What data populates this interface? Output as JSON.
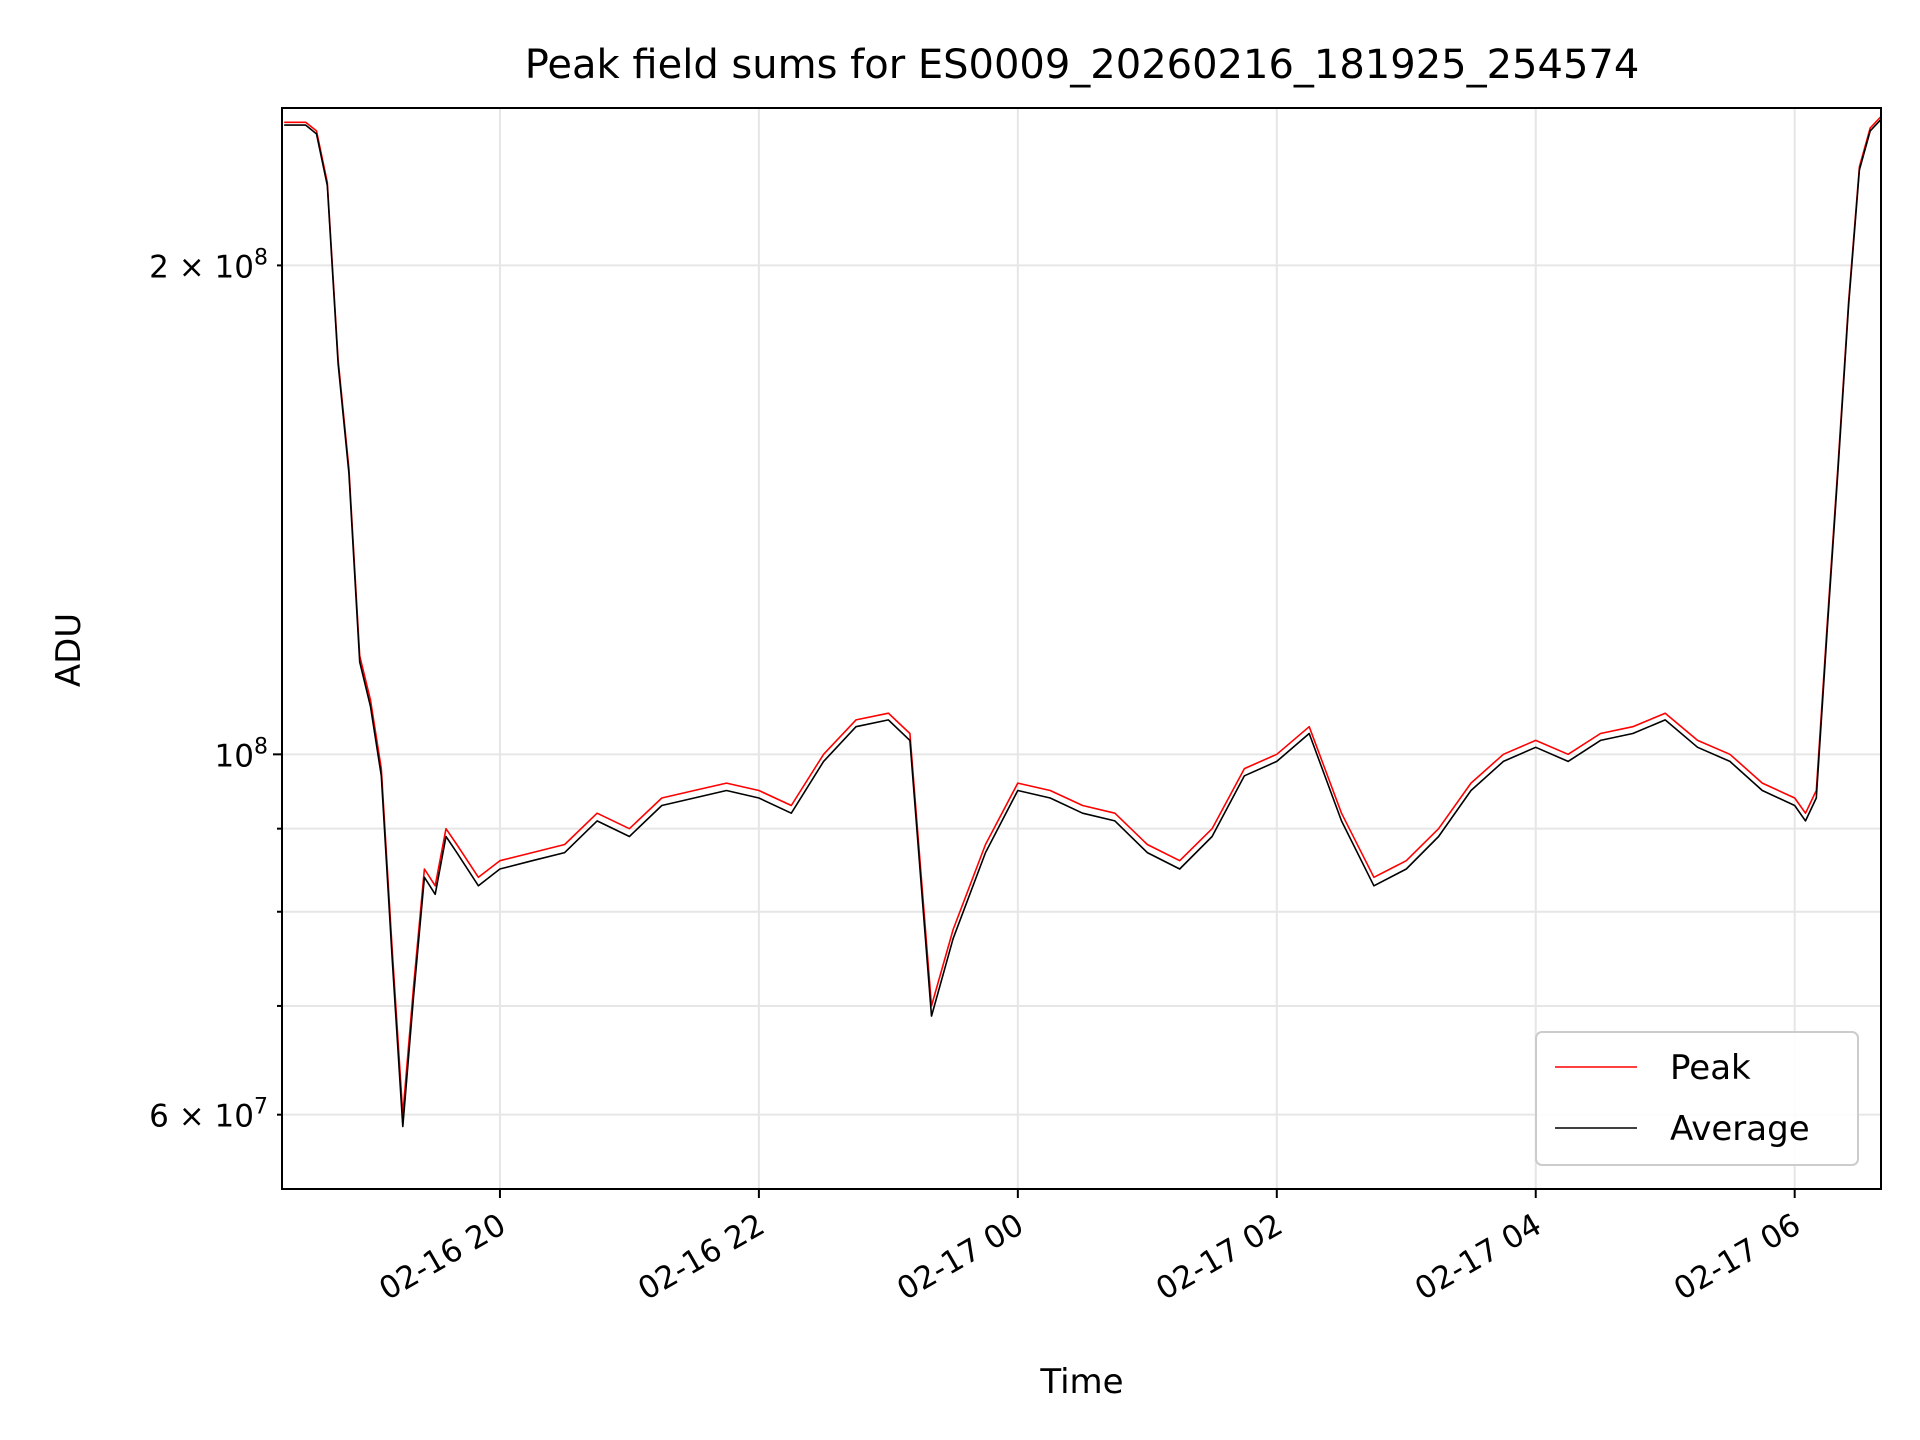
{
  "chart_data": {
    "type": "line",
    "title": "Peak field sums for ES0009_20260216_181925_254574",
    "xlabel": "Time",
    "ylabel": "ADU",
    "y_scale": "log",
    "grid": true,
    "legend_position": "lower right",
    "x_axis": {
      "type": "datetime",
      "range": [
        "2026-02-16 18:19",
        "2026-02-17 06:40"
      ],
      "ticks": [
        "2026-02-16 20:00",
        "2026-02-16 22:00",
        "2026-02-17 00:00",
        "2026-02-17 02:00",
        "2026-02-17 04:00",
        "2026-02-17 06:00"
      ],
      "tick_labels": [
        "02-16 20",
        "02-16 22",
        "02-17 00",
        "02-17 02",
        "02-17 04",
        "02-17 06"
      ]
    },
    "y_axis": {
      "range": [
        54000000,
        250000000
      ],
      "major_ticks": [
        100000000
      ],
      "major_tick_labels": [
        "10^8"
      ],
      "minor_ticks": [
        60000000,
        70000000,
        80000000,
        90000000,
        200000000
      ],
      "labeled_minor_ticks": [
        {
          "value": 60000000,
          "label": "6 × 10^7"
        },
        {
          "value": 200000000,
          "label": "2 × 10^8"
        }
      ]
    },
    "series": [
      {
        "name": "Peak",
        "color": "#ff0000",
        "x": [
          "2026-02-16 18:20",
          "2026-02-16 18:30",
          "2026-02-16 18:35",
          "2026-02-16 18:40",
          "2026-02-16 18:45",
          "2026-02-16 18:50",
          "2026-02-16 18:55",
          "2026-02-16 19:00",
          "2026-02-16 19:05",
          "2026-02-16 19:10",
          "2026-02-16 19:15",
          "2026-02-16 19:20",
          "2026-02-16 19:25",
          "2026-02-16 19:30",
          "2026-02-16 19:35",
          "2026-02-16 19:40",
          "2026-02-16 19:50",
          "2026-02-16 20:00",
          "2026-02-16 20:15",
          "2026-02-16 20:30",
          "2026-02-16 20:45",
          "2026-02-16 21:00",
          "2026-02-16 21:15",
          "2026-02-16 21:30",
          "2026-02-16 21:45",
          "2026-02-16 22:00",
          "2026-02-16 22:15",
          "2026-02-16 22:30",
          "2026-02-16 22:45",
          "2026-02-16 23:00",
          "2026-02-16 23:10",
          "2026-02-16 23:20",
          "2026-02-16 23:30",
          "2026-02-16 23:45",
          "2026-02-17 00:00",
          "2026-02-17 00:15",
          "2026-02-17 00:30",
          "2026-02-17 00:45",
          "2026-02-17 01:00",
          "2026-02-17 01:15",
          "2026-02-17 01:30",
          "2026-02-17 01:45",
          "2026-02-17 02:00",
          "2026-02-17 02:15",
          "2026-02-17 02:30",
          "2026-02-17 02:45",
          "2026-02-17 03:00",
          "2026-02-17 03:15",
          "2026-02-17 03:30",
          "2026-02-17 03:45",
          "2026-02-17 04:00",
          "2026-02-17 04:15",
          "2026-02-17 04:30",
          "2026-02-17 04:45",
          "2026-02-17 05:00",
          "2026-02-17 05:15",
          "2026-02-17 05:30",
          "2026-02-17 05:45",
          "2026-02-17 06:00",
          "2026-02-17 06:05",
          "2026-02-17 06:10",
          "2026-02-17 06:15",
          "2026-02-17 06:20",
          "2026-02-17 06:25",
          "2026-02-17 06:30",
          "2026-02-17 06:35",
          "2026-02-17 06:40"
        ],
        "y": [
          245000000,
          245000000,
          242000000,
          225000000,
          175000000,
          150000000,
          115000000,
          108000000,
          98000000,
          76000000,
          60000000,
          72000000,
          85000000,
          83000000,
          90000000,
          88000000,
          84000000,
          86000000,
          87000000,
          88000000,
          92000000,
          90000000,
          94000000,
          95000000,
          96000000,
          95000000,
          93000000,
          100000000,
          105000000,
          106000000,
          103000000,
          70000000,
          78000000,
          88000000,
          96000000,
          95000000,
          93000000,
          92000000,
          88000000,
          86000000,
          90000000,
          98000000,
          100000000,
          104000000,
          92000000,
          84000000,
          86000000,
          90000000,
          96000000,
          100000000,
          102000000,
          100000000,
          103000000,
          104000000,
          106000000,
          102000000,
          100000000,
          96000000,
          94000000,
          92000000,
          95000000,
          120000000,
          150000000,
          190000000,
          230000000,
          243000000,
          247000000
        ]
      },
      {
        "name": "Average",
        "color": "#000000",
        "x": [
          "2026-02-16 18:20",
          "2026-02-16 18:30",
          "2026-02-16 18:35",
          "2026-02-16 18:40",
          "2026-02-16 18:45",
          "2026-02-16 18:50",
          "2026-02-16 18:55",
          "2026-02-16 19:00",
          "2026-02-16 19:05",
          "2026-02-16 19:10",
          "2026-02-16 19:15",
          "2026-02-16 19:20",
          "2026-02-16 19:25",
          "2026-02-16 19:30",
          "2026-02-16 19:35",
          "2026-02-16 19:40",
          "2026-02-16 19:50",
          "2026-02-16 20:00",
          "2026-02-16 20:15",
          "2026-02-16 20:30",
          "2026-02-16 20:45",
          "2026-02-16 21:00",
          "2026-02-16 21:15",
          "2026-02-16 21:30",
          "2026-02-16 21:45",
          "2026-02-16 22:00",
          "2026-02-16 22:15",
          "2026-02-16 22:30",
          "2026-02-16 22:45",
          "2026-02-16 23:00",
          "2026-02-16 23:10",
          "2026-02-16 23:20",
          "2026-02-16 23:30",
          "2026-02-16 23:45",
          "2026-02-17 00:00",
          "2026-02-17 00:15",
          "2026-02-17 00:30",
          "2026-02-17 00:45",
          "2026-02-17 01:00",
          "2026-02-17 01:15",
          "2026-02-17 01:30",
          "2026-02-17 01:45",
          "2026-02-17 02:00",
          "2026-02-17 02:15",
          "2026-02-17 02:30",
          "2026-02-17 02:45",
          "2026-02-17 03:00",
          "2026-02-17 03:15",
          "2026-02-17 03:30",
          "2026-02-17 03:45",
          "2026-02-17 04:00",
          "2026-02-17 04:15",
          "2026-02-17 04:30",
          "2026-02-17 04:45",
          "2026-02-17 05:00",
          "2026-02-17 05:15",
          "2026-02-17 05:30",
          "2026-02-17 05:45",
          "2026-02-17 06:00",
          "2026-02-17 06:05",
          "2026-02-17 06:10",
          "2026-02-17 06:15",
          "2026-02-17 06:20",
          "2026-02-17 06:25",
          "2026-02-17 06:30",
          "2026-02-17 06:35",
          "2026-02-17 06:40"
        ],
        "y": [
          244000000,
          244000000,
          241000000,
          224000000,
          174000000,
          149000000,
          114000000,
          107000000,
          97000000,
          75000000,
          59000000,
          71000000,
          84000000,
          82000000,
          89000000,
          87000000,
          83000000,
          85000000,
          86000000,
          87000000,
          91000000,
          89000000,
          93000000,
          94000000,
          95000000,
          94000000,
          92000000,
          99000000,
          104000000,
          105000000,
          102000000,
          69000000,
          77000000,
          87000000,
          95000000,
          94000000,
          92000000,
          91000000,
          87000000,
          85000000,
          89000000,
          97000000,
          99000000,
          103000000,
          91000000,
          83000000,
          85000000,
          89000000,
          95000000,
          99000000,
          101000000,
          99000000,
          102000000,
          103000000,
          105000000,
          101000000,
          99000000,
          95000000,
          93000000,
          91000000,
          94000000,
          119000000,
          149000000,
          189000000,
          229000000,
          242000000,
          246000000
        ]
      }
    ]
  }
}
